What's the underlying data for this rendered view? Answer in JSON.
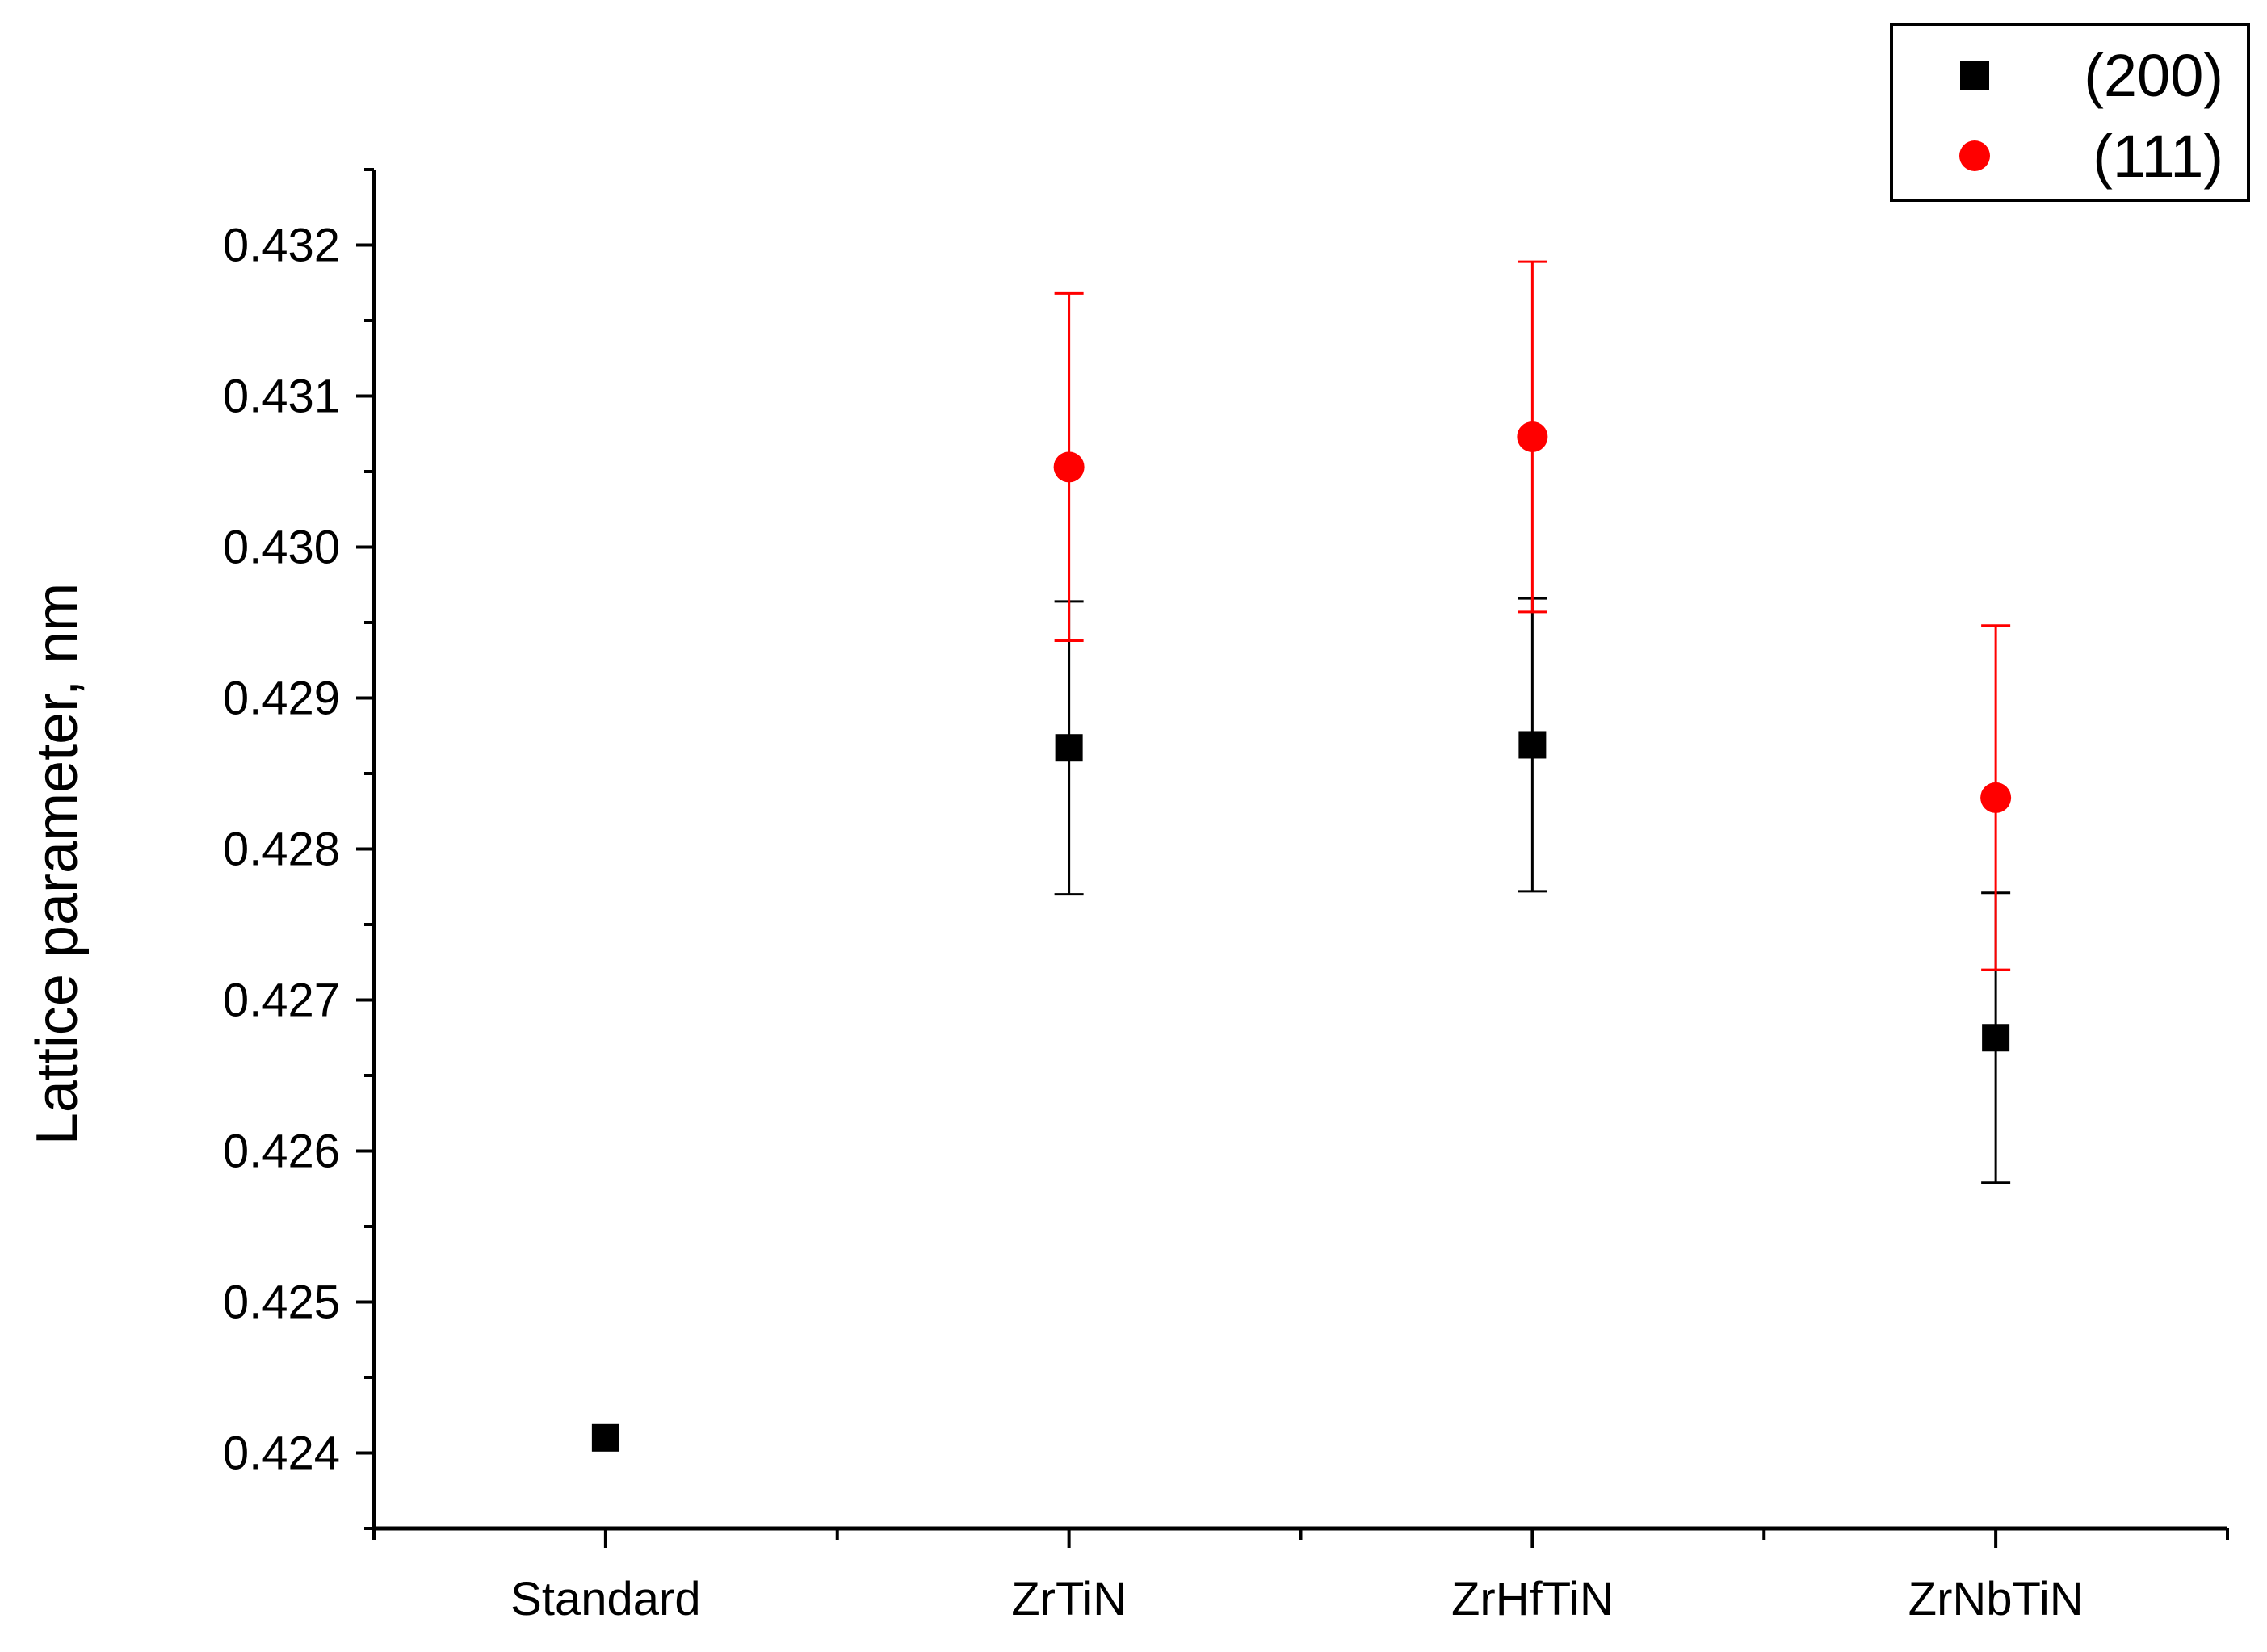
{
  "chart_data": {
    "type": "scatter",
    "categories": [
      "Standard",
      "ZrTiN",
      "ZrHfTiN",
      "ZrNbTiN"
    ],
    "ylabel": "Lattice parameter, nm",
    "xlabel": "",
    "ylim": [
      0.4235,
      0.4325
    ],
    "yticks": [
      "0.424",
      "0.425",
      "0.426",
      "0.427",
      "0.428",
      "0.429",
      "0.430",
      "0.431",
      "0.432"
    ],
    "grid": false,
    "legend_position": "top-right",
    "series": [
      {
        "name": "(200)",
        "marker": "square",
        "color": "#000000",
        "values": [
          0.4241,
          0.42867,
          0.42869,
          0.42675
        ],
        "errors": [
          null,
          0.00097,
          0.00097,
          0.00096
        ]
      },
      {
        "name": "(111)",
        "marker": "circle",
        "color": "#ff0000",
        "values": [
          null,
          0.43053,
          0.43073,
          0.42834
        ],
        "errors": [
          null,
          0.00115,
          0.00116,
          0.00114
        ]
      }
    ]
  }
}
